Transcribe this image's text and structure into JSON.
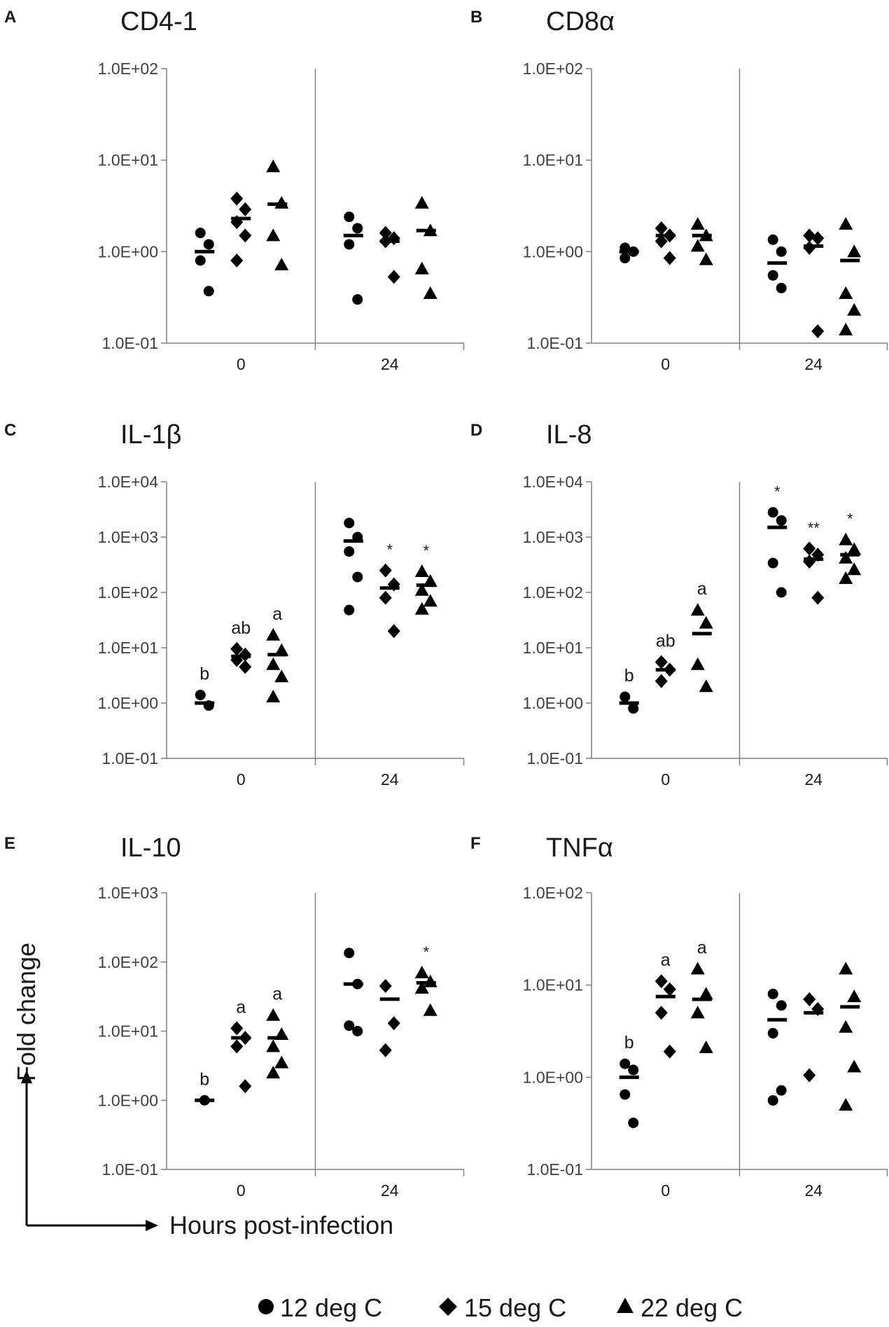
{
  "figure": {
    "y_axis_label": "Fold change",
    "x_axis_label": "Hours post-infection",
    "legend": [
      {
        "marker": "circle",
        "label": "12 deg C"
      },
      {
        "marker": "diamond",
        "label": "15 deg C"
      },
      {
        "marker": "triangle",
        "label": "22 deg C"
      }
    ],
    "colors": {
      "marks": "#000000",
      "axis": "#808080",
      "text": "#1a1a1a"
    }
  },
  "chart_data": [
    {
      "panel": "A",
      "title": "CD4-1",
      "type": "scatter",
      "scale": "log10",
      "x_categories": [
        "0",
        "24"
      ],
      "ylim": [
        0.1,
        100
      ],
      "y_ticks": [
        "1.0E-01",
        "1.0E+00",
        "1.0E+01",
        "1.0E+02"
      ],
      "series": [
        {
          "name": "12 deg C",
          "marker": "circle",
          "time_0": {
            "points": [
              1.6,
              1.2,
              0.8,
              0.37
            ],
            "mean": 1.0,
            "label": ""
          },
          "time_24": {
            "points": [
              2.4,
              1.8,
              1.2,
              0.3
            ],
            "mean": 1.5,
            "label": ""
          }
        },
        {
          "name": "15 deg C",
          "marker": "diamond",
          "time_0": {
            "points": [
              3.8,
              2.9,
              2.1,
              1.5,
              0.8
            ],
            "mean": 2.3,
            "label": ""
          },
          "time_24": {
            "points": [
              1.6,
              1.4,
              1.3,
              0.53
            ],
            "mean": 1.3,
            "label": ""
          }
        },
        {
          "name": "22 deg C",
          "marker": "triangle",
          "time_0": {
            "points": [
              8.5,
              3.4,
              1.5,
              0.72
            ],
            "mean": 3.3,
            "label": ""
          },
          "time_24": {
            "points": [
              3.4,
              1.7,
              0.65,
              0.35
            ],
            "mean": 1.7,
            "label": ""
          }
        }
      ]
    },
    {
      "panel": "B",
      "title": "CD8α",
      "type": "scatter",
      "scale": "log10",
      "x_categories": [
        "0",
        "24"
      ],
      "ylim": [
        0.1,
        100
      ],
      "y_ticks": [
        "1.0E-01",
        "1.0E+00",
        "1.0E+01",
        "1.0E+02"
      ],
      "series": [
        {
          "name": "12 deg C",
          "marker": "circle",
          "time_0": {
            "points": [
              1.1,
              1.0,
              0.85
            ],
            "mean": 1.0,
            "label": ""
          },
          "time_24": {
            "points": [
              1.35,
              1.0,
              0.55,
              0.4
            ],
            "mean": 0.75,
            "label": ""
          }
        },
        {
          "name": "15 deg C",
          "marker": "diamond",
          "time_0": {
            "points": [
              1.8,
              1.5,
              1.3,
              0.85
            ],
            "mean": 1.5,
            "label": ""
          },
          "time_24": {
            "points": [
              1.5,
              1.4,
              1.1,
              0.135
            ],
            "mean": 1.15,
            "label": ""
          }
        },
        {
          "name": "22 deg C",
          "marker": "triangle",
          "time_0": {
            "points": [
              2.0,
              1.5,
              1.15,
              0.82
            ],
            "mean": 1.5,
            "label": ""
          },
          "time_24": {
            "points": [
              2.0,
              1.0,
              0.35,
              0.23,
              0.14
            ],
            "mean": 0.8,
            "label": ""
          }
        }
      ]
    },
    {
      "panel": "C",
      "title": "IL-1β",
      "type": "scatter",
      "scale": "log10",
      "x_categories": [
        "0",
        "24"
      ],
      "ylim": [
        0.1,
        10000
      ],
      "y_ticks": [
        "1.0E-01",
        "1.0E+00",
        "1.0E+01",
        "1.0E+02",
        "1.0E+03",
        "1.0E+04"
      ],
      "series": [
        {
          "name": "12 deg C",
          "marker": "circle",
          "time_0": {
            "points": [
              1.4,
              0.9
            ],
            "mean": 1.0,
            "label": "b"
          },
          "time_24": {
            "points": [
              1800,
              1000,
              550,
              190,
              48
            ],
            "mean": 850,
            "label": ""
          }
        },
        {
          "name": "15 deg C",
          "marker": "diamond",
          "time_0": {
            "points": [
              9.5,
              7.5,
              6.0,
              4.5
            ],
            "mean": 7.0,
            "label": "ab"
          },
          "time_24": {
            "points": [
              250,
              140,
              80,
              20
            ],
            "mean": 120,
            "label": "*"
          }
        },
        {
          "name": "22 deg C",
          "marker": "triangle",
          "time_0": {
            "points": [
              17,
              9,
              5,
              3,
              1.3
            ],
            "mean": 7.5,
            "label": "a"
          },
          "time_24": {
            "points": [
              240,
              160,
              110,
              70,
              50
            ],
            "mean": 135,
            "label": "*"
          }
        }
      ]
    },
    {
      "panel": "D",
      "title": "IL-8",
      "type": "scatter",
      "scale": "log10",
      "x_categories": [
        "0",
        "24"
      ],
      "ylim": [
        0.1,
        10000
      ],
      "y_ticks": [
        "1.0E-01",
        "1.0E+00",
        "1.0E+01",
        "1.0E+02",
        "1.0E+03",
        "1.0E+04"
      ],
      "series": [
        {
          "name": "12 deg C",
          "marker": "circle",
          "time_0": {
            "points": [
              1.3,
              0.8
            ],
            "mean": 1.0,
            "label": "b"
          },
          "time_24": {
            "points": [
              2800,
              2000,
              340,
              100
            ],
            "mean": 1500,
            "label": "*"
          }
        },
        {
          "name": "15 deg C",
          "marker": "diamond",
          "time_0": {
            "points": [
              5.5,
              4.0,
              2.5
            ],
            "mean": 4.0,
            "label": "ab"
          },
          "time_24": {
            "points": [
              620,
              480,
              360,
              80
            ],
            "mean": 400,
            "label": "**"
          }
        },
        {
          "name": "22 deg C",
          "marker": "triangle",
          "time_0": {
            "points": [
              48,
              28,
              5,
              2
            ],
            "mean": 18,
            "label": "a"
          },
          "time_24": {
            "points": [
              900,
              600,
              420,
              260,
              180
            ],
            "mean": 480,
            "label": "*"
          }
        }
      ]
    },
    {
      "panel": "E",
      "title": "IL-10",
      "type": "scatter",
      "scale": "log10",
      "x_categories": [
        "0",
        "24"
      ],
      "ylim": [
        0.1,
        1000
      ],
      "y_ticks": [
        "1.0E-01",
        "1.0E+00",
        "1.0E+01",
        "1.0E+02",
        "1.0E+03"
      ],
      "series": [
        {
          "name": "12 deg C",
          "marker": "circle",
          "time_0": {
            "points": [
              1.0
            ],
            "mean": 1.0,
            "label": "b"
          },
          "time_24": {
            "points": [
              135,
              48,
              12,
              10
            ],
            "mean": 48,
            "label": ""
          }
        },
        {
          "name": "15 deg C",
          "marker": "diamond",
          "time_0": {
            "points": [
              11,
              8,
              6,
              1.6
            ],
            "mean": 8.0,
            "label": "a"
          },
          "time_24": {
            "points": [
              45,
              13,
              5.3
            ],
            "mean": 29,
            "label": ""
          }
        },
        {
          "name": "22 deg C",
          "marker": "triangle",
          "time_0": {
            "points": [
              17,
              9,
              6,
              3.5,
              2.5
            ],
            "mean": 8.0,
            "label": "a"
          },
          "time_24": {
            "points": [
              70,
              52,
              42,
              20
            ],
            "mean": 50,
            "label": "*"
          }
        }
      ]
    },
    {
      "panel": "F",
      "title": "TNFα",
      "type": "scatter",
      "scale": "log10",
      "x_categories": [
        "0",
        "24"
      ],
      "ylim": [
        0.1,
        100
      ],
      "y_ticks": [
        "1.0E-01",
        "1.0E+00",
        "1.0E+01",
        "1.0E+02"
      ],
      "series": [
        {
          "name": "12 deg C",
          "marker": "circle",
          "time_0": {
            "points": [
              1.4,
              1.2,
              0.65,
              0.32
            ],
            "mean": 1.0,
            "label": "b"
          },
          "time_24": {
            "points": [
              8.0,
              6.0,
              3.0,
              0.72,
              0.56
            ],
            "mean": 4.2,
            "label": ""
          }
        },
        {
          "name": "15 deg C",
          "marker": "diamond",
          "time_0": {
            "points": [
              11,
              9,
              5,
              1.9
            ],
            "mean": 7.5,
            "label": "a"
          },
          "time_24": {
            "points": [
              7,
              5.5,
              1.05
            ],
            "mean": 5.0,
            "label": ""
          }
        },
        {
          "name": "22 deg C",
          "marker": "triangle",
          "time_0": {
            "points": [
              15,
              8,
              5,
              2.1
            ],
            "mean": 7.0,
            "label": "a"
          },
          "time_24": {
            "points": [
              15,
              7.5,
              3.5,
              1.3,
              0.5
            ],
            "mean": 5.8,
            "label": ""
          }
        }
      ]
    }
  ]
}
